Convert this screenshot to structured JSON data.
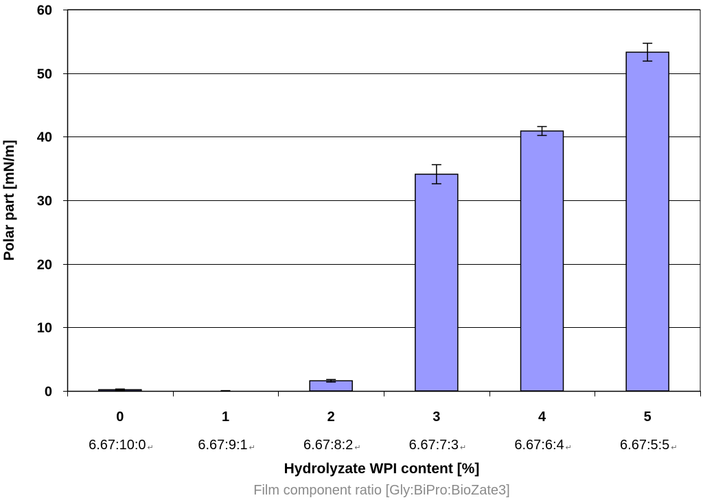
{
  "chart_data": {
    "type": "bar",
    "categories": [
      "0",
      "1",
      "2",
      "3",
      "4",
      "5"
    ],
    "category_sublabels": [
      "6.67:10:0",
      "6.67:9:1",
      "6.67:8:2",
      "6.67:7:3",
      "6.67:6:4",
      "6.67:5:5"
    ],
    "values": [
      0.2,
      0.0,
      1.6,
      34.1,
      40.9,
      53.3
    ],
    "error": [
      0.1,
      0.05,
      0.2,
      1.5,
      0.7,
      1.4
    ],
    "xlabel": "Hydrolyzate WPI content [%]",
    "ylabel": "Polar part  [mN/m]",
    "caption": "Film component ratio [Gly:BiPro:BioZate3]",
    "ylim": [
      0,
      60
    ],
    "yticks": [
      0,
      10,
      20,
      30,
      40,
      50,
      60
    ],
    "grid": true,
    "legend": "none",
    "colors": {
      "bar": "#9999ff",
      "bar_border": "#000000",
      "grid": "#000000",
      "caption": "#8a8a8a"
    }
  }
}
